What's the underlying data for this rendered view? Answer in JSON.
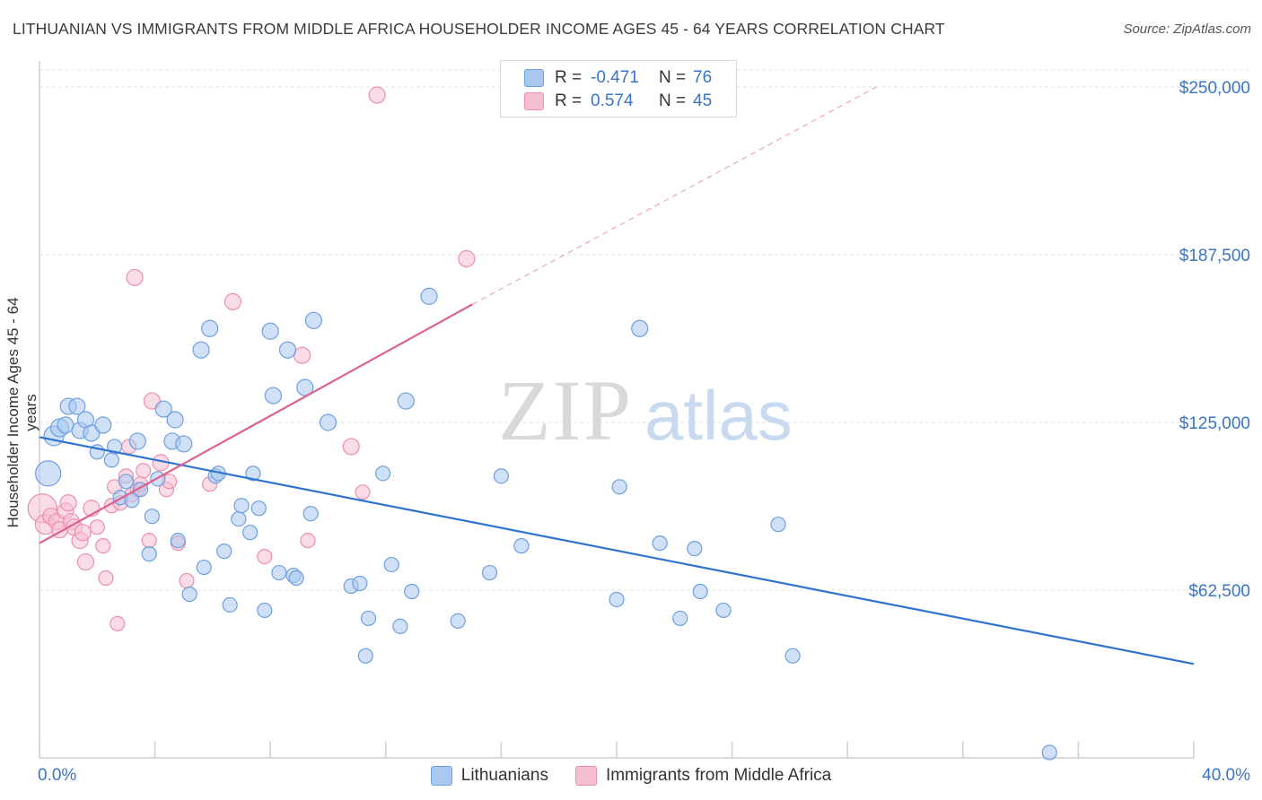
{
  "title": "LITHUANIAN VS IMMIGRANTS FROM MIDDLE AFRICA HOUSEHOLDER INCOME AGES 45 - 64 YEARS CORRELATION CHART",
  "source": "Source: ZipAtlas.com",
  "watermark": {
    "zip": "ZIP",
    "atlas": "atlas"
  },
  "legend": {
    "row1": {
      "r_label": "R =",
      "r_value": "-0.471",
      "n_label": "N =",
      "n_value": "76"
    },
    "row2": {
      "r_label": "R =",
      "r_value": "0.574",
      "n_label": "N =",
      "n_value": "45"
    }
  },
  "bottom_legend": {
    "series1": "Lithuanians",
    "series2": "Immigrants from Middle Africa"
  },
  "colors": {
    "blue_fill": "#a9c8f0",
    "blue_stroke": "#6e9fe0",
    "blue_line": "#2e72d2",
    "pink_fill": "#f6bfd1",
    "pink_stroke": "#ec8fae",
    "pink_line": "#e0628e",
    "axis_label": "#3a74c6",
    "grid": "#e3e3e3"
  },
  "chart_data": {
    "type": "scatter",
    "xlabel": "",
    "ylabel": "Householder Income Ages 45 - 64 years",
    "xlim": [
      0,
      40
    ],
    "ylim": [
      0,
      250000
    ],
    "x_tick_labels": {
      "left": "0.0%",
      "right": "40.0%"
    },
    "y_ticks": [
      62500,
      125000,
      187500,
      250000
    ],
    "y_tick_labels": [
      "$62,500",
      "$125,000",
      "$187,500",
      "$250,000"
    ],
    "grid": true,
    "legend_position": "top-center",
    "series": [
      {
        "name": "Lithuanians",
        "trend": {
          "x0": 0.0,
          "y0": 119500,
          "x1": 40.0,
          "y1": 35000
        },
        "points": [
          [
            0.3,
            106000,
            14
          ],
          [
            0.5,
            120000,
            11
          ],
          [
            0.7,
            123000,
            10
          ],
          [
            0.9,
            124000,
            9
          ],
          [
            1.0,
            131000,
            9
          ],
          [
            1.3,
            131000,
            9
          ],
          [
            1.4,
            122000,
            9
          ],
          [
            1.6,
            126000,
            9
          ],
          [
            1.8,
            121000,
            9
          ],
          [
            2.0,
            114000,
            8
          ],
          [
            2.2,
            124000,
            9
          ],
          [
            2.5,
            111000,
            8
          ],
          [
            2.6,
            116000,
            8
          ],
          [
            2.8,
            97000,
            8
          ],
          [
            3.0,
            103000,
            8
          ],
          [
            3.2,
            96000,
            8
          ],
          [
            3.4,
            118000,
            9
          ],
          [
            3.5,
            100000,
            8
          ],
          [
            3.8,
            76000,
            8
          ],
          [
            3.9,
            90000,
            8
          ],
          [
            4.1,
            104000,
            8
          ],
          [
            4.3,
            130000,
            9
          ],
          [
            4.6,
            118000,
            9
          ],
          [
            4.7,
            126000,
            9
          ],
          [
            4.8,
            81000,
            8
          ],
          [
            5.0,
            117000,
            9
          ],
          [
            5.2,
            61000,
            8
          ],
          [
            5.6,
            152000,
            9
          ],
          [
            5.7,
            71000,
            8
          ],
          [
            5.9,
            160000,
            9
          ],
          [
            6.1,
            105000,
            8
          ],
          [
            6.2,
            106000,
            8
          ],
          [
            6.4,
            77000,
            8
          ],
          [
            6.6,
            57000,
            8
          ],
          [
            6.9,
            89000,
            8
          ],
          [
            7.0,
            94000,
            8
          ],
          [
            7.3,
            84000,
            8
          ],
          [
            7.4,
            106000,
            8
          ],
          [
            7.6,
            93000,
            8
          ],
          [
            7.8,
            55000,
            8
          ],
          [
            8.0,
            159000,
            9
          ],
          [
            8.1,
            135000,
            9
          ],
          [
            8.3,
            69000,
            8
          ],
          [
            8.6,
            152000,
            9
          ],
          [
            8.8,
            68000,
            8
          ],
          [
            8.9,
            67000,
            8
          ],
          [
            9.2,
            138000,
            9
          ],
          [
            9.5,
            163000,
            9
          ],
          [
            9.4,
            91000,
            8
          ],
          [
            10.0,
            125000,
            9
          ],
          [
            10.8,
            64000,
            8
          ],
          [
            11.1,
            65000,
            8
          ],
          [
            11.3,
            38000,
            8
          ],
          [
            11.4,
            52000,
            8
          ],
          [
            11.9,
            106000,
            8
          ],
          [
            12.2,
            72000,
            8
          ],
          [
            12.5,
            49000,
            8
          ],
          [
            12.7,
            133000,
            9
          ],
          [
            12.9,
            62000,
            8
          ],
          [
            13.5,
            172000,
            9
          ],
          [
            14.5,
            51000,
            8
          ],
          [
            15.6,
            69000,
            8
          ],
          [
            16.0,
            105000,
            8
          ],
          [
            16.7,
            79000,
            8
          ],
          [
            20.0,
            59000,
            8
          ],
          [
            20.1,
            101000,
            8
          ],
          [
            20.8,
            160000,
            9
          ],
          [
            21.5,
            80000,
            8
          ],
          [
            22.2,
            52000,
            8
          ],
          [
            22.7,
            78000,
            8
          ],
          [
            22.9,
            62000,
            8
          ],
          [
            23.7,
            55000,
            8
          ],
          [
            25.6,
            87000,
            8
          ],
          [
            26.1,
            38000,
            8
          ],
          [
            35.0,
            2000,
            8
          ],
          [
            17.2,
            39000,
            0
          ]
        ]
      },
      {
        "name": "Immigrants from Middle Africa",
        "trend": {
          "x0": 0.0,
          "y0": 80000,
          "x1": 15.0,
          "y1": 169000,
          "dash_x1": 29.0,
          "dash_y1": 250000
        },
        "points": [
          [
            0.1,
            93000,
            16
          ],
          [
            0.2,
            87000,
            11
          ],
          [
            0.4,
            90000,
            9
          ],
          [
            0.6,
            88000,
            9
          ],
          [
            0.7,
            85000,
            9
          ],
          [
            0.9,
            92000,
            9
          ],
          [
            1.1,
            88000,
            9
          ],
          [
            1.2,
            86000,
            9
          ],
          [
            1.4,
            81000,
            9
          ],
          [
            1.5,
            84000,
            9
          ],
          [
            1.6,
            73000,
            9
          ],
          [
            1.8,
            93000,
            9
          ],
          [
            2.0,
            86000,
            8
          ],
          [
            2.2,
            79000,
            8
          ],
          [
            2.3,
            67000,
            8
          ],
          [
            2.5,
            94000,
            8
          ],
          [
            2.6,
            101000,
            8
          ],
          [
            2.7,
            50000,
            8
          ],
          [
            2.8,
            95000,
            8
          ],
          [
            3.0,
            105000,
            8
          ],
          [
            3.1,
            116000,
            8
          ],
          [
            3.2,
            98000,
            8
          ],
          [
            3.4,
            100000,
            8
          ],
          [
            3.3,
            179000,
            9
          ],
          [
            3.5,
            102000,
            8
          ],
          [
            3.6,
            107000,
            8
          ],
          [
            3.8,
            81000,
            8
          ],
          [
            3.9,
            133000,
            9
          ],
          [
            4.2,
            110000,
            9
          ],
          [
            4.4,
            100000,
            8
          ],
          [
            4.5,
            103000,
            8
          ],
          [
            4.8,
            80000,
            8
          ],
          [
            5.1,
            66000,
            8
          ],
          [
            5.9,
            102000,
            8
          ],
          [
            6.7,
            170000,
            9
          ],
          [
            7.8,
            75000,
            8
          ],
          [
            9.1,
            150000,
            9
          ],
          [
            9.3,
            81000,
            8
          ],
          [
            10.8,
            116000,
            9
          ],
          [
            11.2,
            99000,
            8
          ],
          [
            11.7,
            247000,
            9
          ],
          [
            14.8,
            186000,
            9
          ],
          [
            1.0,
            95000,
            9
          ],
          [
            2.9,
            78000,
            0
          ],
          [
            4.6,
            67000,
            0
          ]
        ]
      }
    ]
  }
}
